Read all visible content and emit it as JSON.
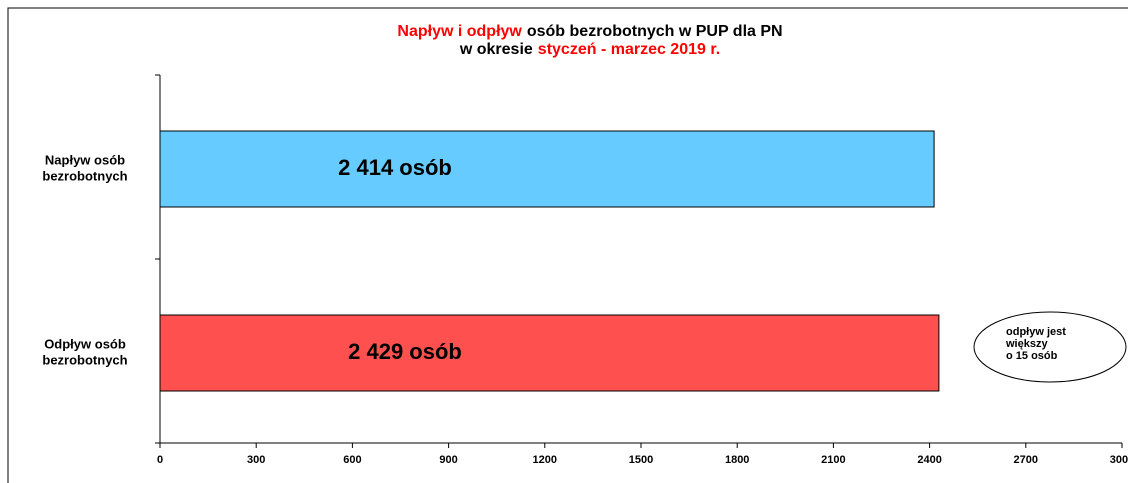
{
  "chart_data": {
    "type": "barh",
    "title": [
      [
        {
          "text": "Napływ i odpływ",
          "color": "#ff0000"
        },
        {
          "text": "osób bezrobotnych w PUP dla PN",
          "color": "#000000"
        }
      ],
      [
        {
          "text": "w okresie",
          "color": "#000000"
        },
        {
          "text": "styczeń - marzec 2019 r.",
          "color": "#ff0000"
        }
      ]
    ],
    "categories": [
      [
        "Napływ osób",
        "bezrobotnych"
      ],
      [
        "Odpływ osób",
        "bezrobotnych"
      ]
    ],
    "values": [
      2414,
      2429
    ],
    "value_labels": [
      "2 414 osób",
      "2 429 osób"
    ],
    "colors": [
      "#66ccff",
      "#ff5050"
    ],
    "xlim": [
      0,
      3000
    ],
    "xticks": [
      0,
      300,
      600,
      900,
      1200,
      1500,
      1800,
      2100,
      2400,
      2700,
      3000
    ],
    "annotation": [
      "odpływ jest",
      "większy",
      "o 15 osób"
    ]
  }
}
